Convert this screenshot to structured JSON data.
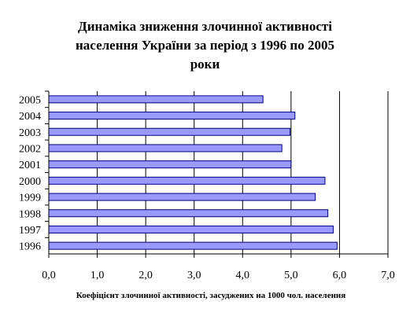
{
  "chart_data": {
    "type": "bar",
    "orientation": "horizontal",
    "title_lines": [
      "Динаміка зниження злочинної активності",
      "населення України за період з 1996 по 2005",
      "роки"
    ],
    "categories": [
      "2005",
      "2004",
      "2003",
      "2002",
      "2001",
      "2000",
      "1999",
      "1998",
      "1997",
      "1996"
    ],
    "values": [
      4.42,
      5.08,
      4.98,
      4.81,
      5.0,
      5.7,
      5.5,
      5.76,
      5.87,
      5.95
    ],
    "x_ticks": [
      "0,0",
      "1,0",
      "2,0",
      "3,0",
      "4,0",
      "5,0",
      "6,0",
      "7,0"
    ],
    "xlim": [
      0,
      7
    ],
    "xlabel": "Коефіцієнт злочинної активності, засуджених на 1000 чол. населення",
    "ylabel": "",
    "grid": "vertical",
    "bar_color": "#9999ff",
    "bar_border": "#000080"
  }
}
